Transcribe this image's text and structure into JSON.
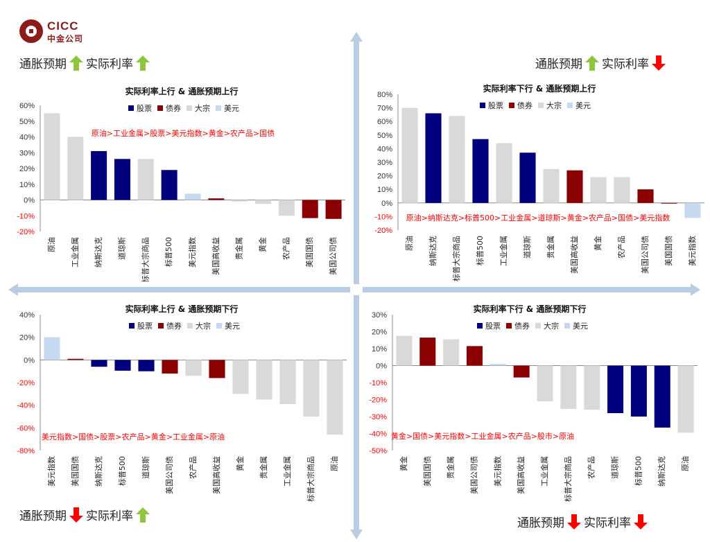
{
  "logo": {
    "en": "CICC",
    "cn": "中金公司"
  },
  "quadrant_labels": {
    "top_left": {
      "infl": "通胀预期",
      "infl_dir": "up",
      "rate": "实际利率",
      "rate_dir": "up"
    },
    "top_right": {
      "infl": "通胀预期",
      "infl_dir": "up",
      "rate": "实际利率",
      "rate_dir": "down"
    },
    "bottom_left": {
      "infl": "通胀预期",
      "infl_dir": "down",
      "rate": "实际利率",
      "rate_dir": "up"
    },
    "bottom_right": {
      "infl": "通胀预期",
      "infl_dir": "down",
      "rate": "实际利率",
      "rate_dir": "down"
    }
  },
  "colors": {
    "股票": "#00007f",
    "债券": "#8b0000",
    "大宗": "#d9d9d9",
    "美元": "#c6d9f0",
    "up_arrow": "#8dc63f",
    "down_arrow": "#ff0000",
    "axis_arrow": "#b8cce4",
    "ranking_text": "#ff0000"
  },
  "legend": [
    "股票",
    "债券",
    "大宗",
    "美元"
  ],
  "chart_data": [
    {
      "type": "bar",
      "title": "实际利率上行 & 通胀预期上行",
      "ranking": "原油>工业金属>股票>美元指数>黄金>农产品>国债",
      "categories": [
        "原油",
        "工业金属",
        "纳斯达克",
        "道琼斯",
        "标普大宗商品",
        "标普500",
        "美元指数",
        "美国高收益",
        "贵金属",
        "黄金",
        "农产品",
        "美国国债",
        "美国公司债"
      ],
      "groups": [
        "大宗",
        "大宗",
        "股票",
        "股票",
        "大宗",
        "股票",
        "美元",
        "债券",
        "大宗",
        "大宗",
        "大宗",
        "债券",
        "债券"
      ],
      "values": [
        55,
        40,
        31,
        26,
        26,
        19,
        4,
        1,
        -1,
        -2.5,
        -10,
        -11.5,
        -12
      ],
      "ylim": [
        -20,
        60
      ],
      "yticks": [
        "-20%",
        "-10%",
        "0%",
        "10%",
        "20%",
        "30%",
        "40%",
        "50%",
        "60%"
      ]
    },
    {
      "type": "bar",
      "title": "实际利率下行 & 通胀预期上行",
      "ranking": "原油>纳斯达克>标普500>工业金属>道琼斯>黄金>农产品>国债>美元指数",
      "categories": [
        "原油",
        "纳斯达克",
        "标普大宗商品",
        "标普500",
        "工业金属",
        "道琼斯",
        "贵金属",
        "美国高收益",
        "黄金",
        "农产品",
        "美国公司债",
        "美国国债",
        "美元指数"
      ],
      "groups": [
        "大宗",
        "股票",
        "大宗",
        "股票",
        "大宗",
        "股票",
        "大宗",
        "债券",
        "大宗",
        "大宗",
        "债券",
        "债券",
        "美元"
      ],
      "values": [
        70,
        66,
        64,
        47,
        44,
        37,
        25,
        24,
        19,
        19,
        10,
        -0.5,
        -11
      ],
      "ylim": [
        -20,
        80
      ],
      "yticks": [
        "-20%",
        "-10%",
        "0%",
        "10%",
        "20%",
        "30%",
        "40%",
        "50%",
        "60%",
        "70%",
        "80%"
      ]
    },
    {
      "type": "bar",
      "title": "实际利率上行 & 通胀预期下行",
      "ranking": "美元指数>国债>股票>农产品>黄金>工业金属>原油",
      "categories": [
        "美元指数",
        "美国国债",
        "纳斯达克",
        "标普500",
        "道琼斯",
        "美国公司债",
        "农产品",
        "美国高收益",
        "黄金",
        "贵金属",
        "工业金属",
        "标普大宗商品",
        "原油"
      ],
      "groups": [
        "美元",
        "债券",
        "股票",
        "股票",
        "股票",
        "债券",
        "大宗",
        "债券",
        "大宗",
        "大宗",
        "大宗",
        "大宗",
        "大宗"
      ],
      "values": [
        20,
        1,
        -6,
        -9.5,
        -10,
        -12,
        -14,
        -16,
        -30,
        -35,
        -39,
        -50,
        -66
      ],
      "ylim": [
        -80,
        40
      ],
      "yticks": [
        "-80%",
        "-60%",
        "-40%",
        "-20%",
        "0%",
        "20%",
        "40%"
      ]
    },
    {
      "type": "bar",
      "title": "实际利率下行 & 通胀预期下行",
      "ranking": "黄金>国债>美元指数>工业金属>农产品>股市>原油",
      "categories": [
        "黄金",
        "美国国债",
        "贵金属",
        "美国公司债",
        "美元指数",
        "美国高收益",
        "工业金属",
        "标普大宗商品",
        "农产品",
        "道琼斯",
        "标普500",
        "纳斯达克",
        "原油"
      ],
      "groups": [
        "大宗",
        "债券",
        "大宗",
        "债券",
        "美元",
        "债券",
        "大宗",
        "大宗",
        "大宗",
        "股票",
        "股票",
        "股票",
        "大宗"
      ],
      "values": [
        17.5,
        16.5,
        15.5,
        11.5,
        1,
        -7,
        -21,
        -25.5,
        -26,
        -28,
        -30,
        -36.5,
        -39.5
      ],
      "ylim": [
        -50,
        30
      ],
      "yticks": [
        "-50%",
        "-40%",
        "-30%",
        "-20%",
        "-10%",
        "0%",
        "10%",
        "20%",
        "30%"
      ]
    }
  ]
}
